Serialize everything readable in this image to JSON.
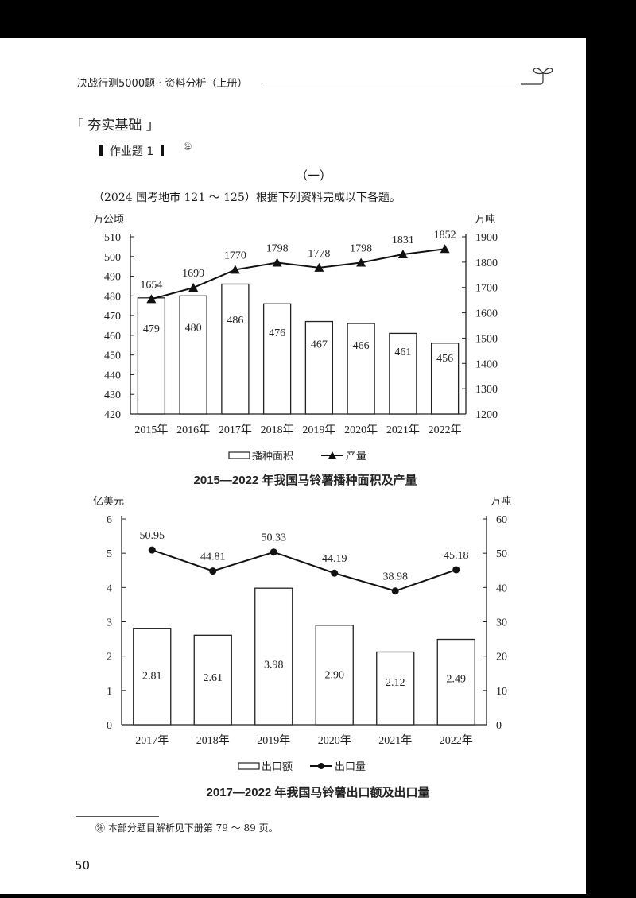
{
  "header": {
    "running_title": "决战行测5000题 · 资料分析（上册）",
    "decoration_icon": "sprout-icon"
  },
  "section": {
    "title": "「 夯实基础 」",
    "exercise_label": "作业题 1",
    "note_marker": "㊟",
    "part_number": "（一）",
    "intro": "（2024 国考地市 121 ～ 125）根据下列资料完成以下各题。"
  },
  "chart_data": [
    {
      "type": "bar+line",
      "title": "2015—2022 年我国马铃薯播种面积及产量",
      "categories": [
        "2015年",
        "2016年",
        "2017年",
        "2018年",
        "2019年",
        "2020年",
        "2021年",
        "2022年"
      ],
      "series": [
        {
          "name": "播种面积",
          "kind": "bar",
          "axis": "left",
          "values": [
            479,
            480,
            486,
            476,
            467,
            466,
            461,
            456
          ]
        },
        {
          "name": "产量",
          "kind": "line",
          "marker": "triangle",
          "axis": "right",
          "values": [
            1654,
            1699,
            1770,
            1798,
            1778,
            1798,
            1831,
            1852
          ]
        }
      ],
      "left_axis": {
        "unit": "万公顷",
        "ylim": [
          420,
          510
        ],
        "ticks": [
          420,
          430,
          440,
          450,
          460,
          470,
          480,
          490,
          500,
          510
        ]
      },
      "right_axis": {
        "unit": "万吨",
        "ylim": [
          1200,
          1900
        ],
        "ticks": [
          1200,
          1300,
          1400,
          1500,
          1600,
          1700,
          1800,
          1900
        ]
      },
      "legend": [
        "播种面积",
        "产量"
      ],
      "legend_position": "bottom",
      "grid": false
    },
    {
      "type": "bar+line",
      "title": "2017—2022 年我国马铃薯出口额及出口量",
      "categories": [
        "2017年",
        "2018年",
        "2019年",
        "2020年",
        "2021年",
        "2022年"
      ],
      "series": [
        {
          "name": "出口额",
          "kind": "bar",
          "axis": "left",
          "values": [
            2.81,
            2.61,
            3.98,
            2.9,
            2.12,
            2.49
          ]
        },
        {
          "name": "出口量",
          "kind": "line",
          "marker": "circle",
          "axis": "right",
          "values": [
            50.95,
            44.81,
            50.33,
            44.19,
            38.98,
            45.18
          ]
        }
      ],
      "left_axis": {
        "unit": "亿美元",
        "ylim": [
          0,
          6
        ],
        "ticks": [
          0,
          1,
          2,
          3,
          4,
          5,
          6
        ]
      },
      "right_axis": {
        "unit": "万吨",
        "ylim": [
          0,
          60
        ],
        "ticks": [
          0,
          10,
          20,
          30,
          40,
          50,
          60
        ]
      },
      "legend": [
        "出口额",
        "出口量"
      ],
      "legend_position": "bottom",
      "grid": false
    }
  ],
  "footnote": "㊟ 本部分题目解析见下册第 79 ～ 89 页。",
  "page_number": "50"
}
